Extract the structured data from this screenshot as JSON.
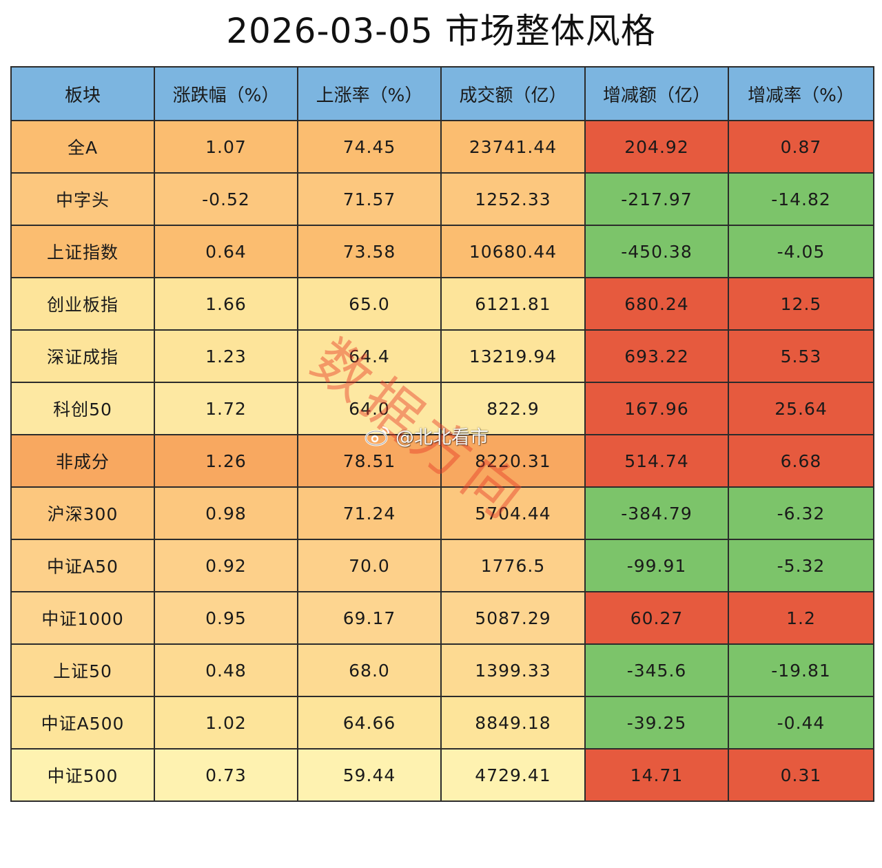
{
  "title": "2026-03-05  市场整体风格",
  "columns": [
    "板块",
    "涨跌幅（%）",
    "上涨率（%）",
    "成交额（亿）",
    "增减额（亿）",
    "增减率（%）"
  ],
  "colors": {
    "header": "#7cb5e0",
    "up_red": "#e65a3e",
    "down_green": "#7cc46a"
  },
  "chart_data": {
    "type": "table",
    "title": "2026-03-05  市场整体风格",
    "columns": [
      "板块",
      "涨跌幅（%）",
      "上涨率（%）",
      "成交额（亿）",
      "增减额（亿）",
      "增减率（%）"
    ],
    "rows": [
      {
        "name": "全A",
        "chg": "1.07",
        "up_rate": "74.45",
        "turnover": "23741.44",
        "delta": "204.92",
        "delta_rate": "0.87",
        "name_color": "#fbbd70",
        "data_color": "#fbbd70",
        "delta_color": "#e65a3e"
      },
      {
        "name": "中字头",
        "chg": "-0.52",
        "up_rate": "71.57",
        "turnover": "1252.33",
        "delta": "-217.97",
        "delta_rate": "-14.82",
        "name_color": "#fcc77e",
        "data_color": "#fcc77e",
        "delta_color": "#7cc46a"
      },
      {
        "name": "上证指数",
        "chg": "0.64",
        "up_rate": "73.58",
        "turnover": "10680.44",
        "delta": "-450.38",
        "delta_rate": "-4.05",
        "name_color": "#fbbd70",
        "data_color": "#fbbd70",
        "delta_color": "#7cc46a"
      },
      {
        "name": "创业板指",
        "chg": "1.66",
        "up_rate": "65.0",
        "turnover": "6121.81",
        "delta": "680.24",
        "delta_rate": "12.5",
        "name_color": "#fde49a",
        "data_color": "#fde49a",
        "delta_color": "#e65a3e"
      },
      {
        "name": "深证成指",
        "chg": "1.23",
        "up_rate": "64.4",
        "turnover": "13219.94",
        "delta": "693.22",
        "delta_rate": "5.53",
        "name_color": "#fde49a",
        "data_color": "#fde49a",
        "delta_color": "#e65a3e"
      },
      {
        "name": "科创50",
        "chg": "1.72",
        "up_rate": "64.0",
        "turnover": "822.9",
        "delta": "167.96",
        "delta_rate": "25.64",
        "name_color": "#fde8a2",
        "data_color": "#fde8a2",
        "delta_color": "#e65a3e"
      },
      {
        "name": "非成分",
        "chg": "1.26",
        "up_rate": "78.51",
        "turnover": "8220.31",
        "delta": "514.74",
        "delta_rate": "6.68",
        "name_color": "#f8a860",
        "data_color": "#f8a860",
        "delta_color": "#e65a3e"
      },
      {
        "name": "沪深300",
        "chg": "0.98",
        "up_rate": "71.24",
        "turnover": "5704.44",
        "delta": "-384.79",
        "delta_rate": "-6.32",
        "name_color": "#fcc77e",
        "data_color": "#fcc77e",
        "delta_color": "#7cc46a"
      },
      {
        "name": "中证A50",
        "chg": "0.92",
        "up_rate": "70.0",
        "turnover": "1776.5",
        "delta": "-99.91",
        "delta_rate": "-5.32",
        "name_color": "#fdd08a",
        "data_color": "#fdd08a",
        "delta_color": "#7cc46a"
      },
      {
        "name": "中证1000",
        "chg": "0.95",
        "up_rate": "69.17",
        "turnover": "5087.29",
        "delta": "60.27",
        "delta_rate": "1.2",
        "name_color": "#fdd590",
        "data_color": "#fdd590",
        "delta_color": "#e65a3e"
      },
      {
        "name": "上证50",
        "chg": "0.48",
        "up_rate": "68.0",
        "turnover": "1399.33",
        "delta": "-345.6",
        "delta_rate": "-19.81",
        "name_color": "#fdda92",
        "data_color": "#fdda92",
        "delta_color": "#7cc46a"
      },
      {
        "name": "中证A500",
        "chg": "1.02",
        "up_rate": "64.66",
        "turnover": "8849.18",
        "delta": "-39.25",
        "delta_rate": "-0.44",
        "name_color": "#fde49a",
        "data_color": "#fde49a",
        "delta_color": "#7cc46a"
      },
      {
        "name": "中证500",
        "chg": "0.73",
        "up_rate": "59.44",
        "turnover": "4729.41",
        "delta": "14.71",
        "delta_rate": "0.31",
        "name_color": "#fef2b0",
        "data_color": "#fef2b0",
        "delta_color": "#e65a3e"
      }
    ]
  },
  "watermark": {
    "text": "数据方向",
    "handle": "@北北看市",
    "logo_icon": "weibo-logo-icon"
  }
}
